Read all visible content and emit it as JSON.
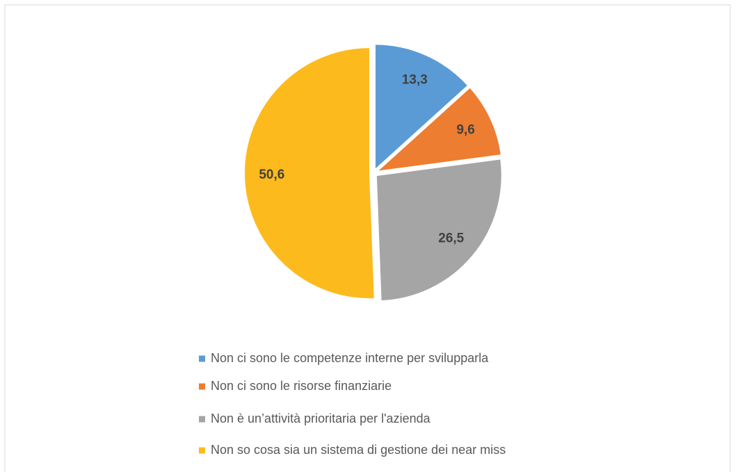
{
  "chart_data": {
    "type": "pie",
    "categories": [
      "Non ci sono le competenze interne per svilupparla",
      "Non ci sono le risorse finanziarie",
      "Non è un’attività prioritaria per l'azienda",
      "Non so cosa sia un sistema di gestione dei near miss"
    ],
    "values": [
      13.3,
      9.6,
      26.5,
      50.6
    ],
    "value_labels": [
      "13,3",
      "9,6",
      "26,5",
      "50,6"
    ],
    "colors": [
      "#5b9bd5",
      "#ed7d31",
      "#a5a5a5",
      "#fdba1c"
    ],
    "legend": "bottom"
  }
}
